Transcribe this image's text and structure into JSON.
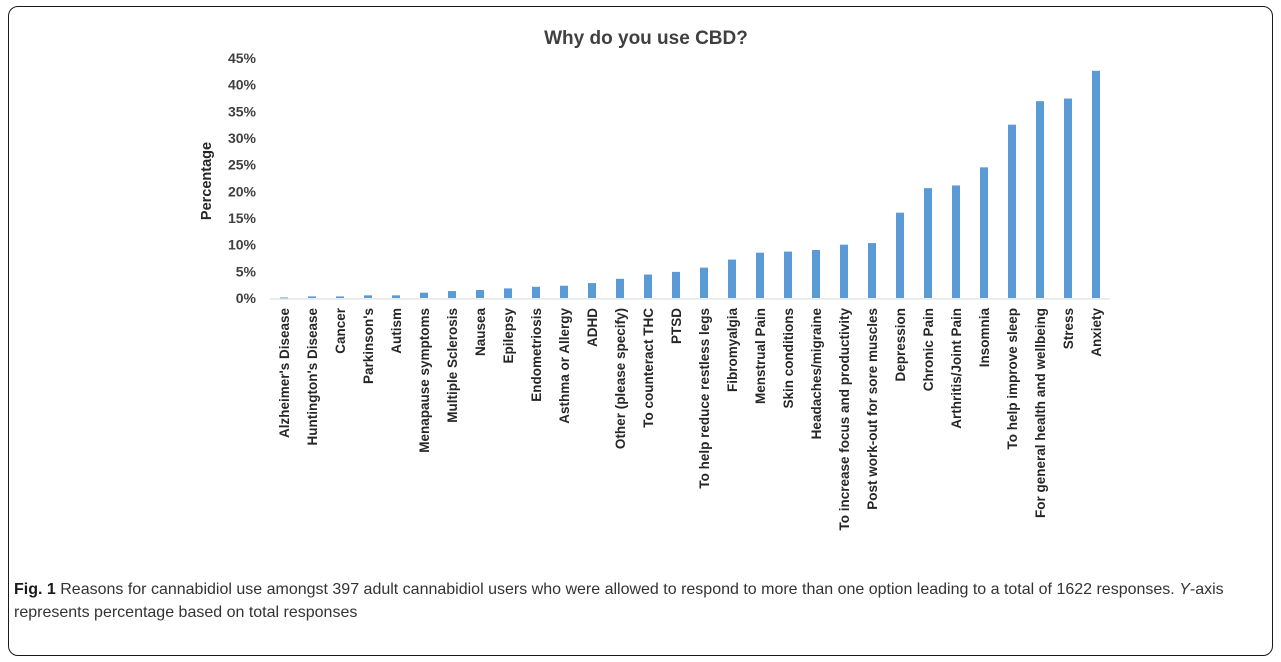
{
  "caption": {
    "fig_label": "Fig. 1",
    "text_before_italic": "Reasons for cannabidiol use amongst 397 adult cannabidiol users who were allowed to respond to more than one option leading to a total of 1622 responses.",
    "italic": "Y",
    "text_after_italic": "-axis represents percentage based on total responses"
  },
  "colors": {
    "bar": "#5B9BD5",
    "axis": "#d9d9d9"
  },
  "chart_data": {
    "type": "bar",
    "title": "Why do you use CBD?",
    "xlabel": "",
    "ylabel": "Percentage",
    "ylim": [
      0,
      45
    ],
    "yticks": [
      "0%",
      "5%",
      "10%",
      "15%",
      "20%",
      "25%",
      "30%",
      "35%",
      "40%",
      "45%"
    ],
    "grid": false,
    "legend": "none",
    "categories": [
      "Alzheimer's Disease",
      "Huntington's Disease",
      "Cancer",
      "Parkinson's",
      "Autism",
      "Menapause symptoms",
      "Multiple Sclerosis",
      "Nausea",
      "Epilepsy",
      "Endometriosis",
      "Asthma or Allergy",
      "ADHD",
      "Other (please specify)",
      "To counteract THC",
      "PTSD",
      "To help reduce restless legs",
      "Fibromyalgia",
      "Menstrual Pain",
      "Skin conditions",
      "Headaches/migraine",
      "To increase focus and productivity",
      "Post work-out for sore muscles",
      "Depression",
      "Chronic Pain",
      "Arthritis/Joint Pain",
      "Insomnia",
      "To help improve sleep",
      "For general health and wellbeing",
      "Stress",
      "Anxiety"
    ],
    "values": [
      0.1,
      0.3,
      0.3,
      0.5,
      0.5,
      1.0,
      1.3,
      1.5,
      1.8,
      2.1,
      2.3,
      2.8,
      3.6,
      4.4,
      4.9,
      5.7,
      7.2,
      8.5,
      8.7,
      9.0,
      10.0,
      10.3,
      16.0,
      20.6,
      21.1,
      24.5,
      32.5,
      36.9,
      37.4,
      42.6
    ]
  }
}
